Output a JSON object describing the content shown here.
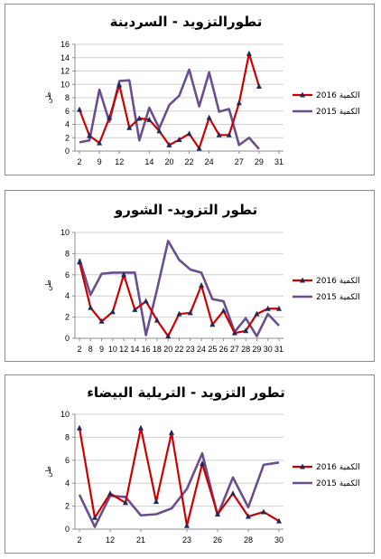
{
  "colors": {
    "s2016": "#cc0000",
    "s2015": "#6a4f8f",
    "marker2016": "#1f2a5c",
    "axis": "#8c8c8c"
  },
  "chart_data": [
    {
      "type": "line",
      "title": "تطورالتزويد - السردينة",
      "ylabel": "طن",
      "ylim": [
        0,
        16
      ],
      "yticks": [
        0,
        2,
        4,
        6,
        8,
        10,
        12,
        14,
        16
      ],
      "x": [
        2,
        6,
        9,
        11,
        12,
        13,
        14,
        16,
        18,
        20,
        21,
        22,
        23,
        24,
        25,
        26,
        27,
        28,
        29,
        30,
        31
      ],
      "xtick_labels": [
        "2",
        "9",
        "12",
        "14",
        "20",
        "22",
        "24",
        "27",
        "29",
        "31"
      ],
      "series": [
        {
          "name": "2016 الكمية",
          "values": [
            6.2,
            2.3,
            1.2,
            5.0,
            9.9,
            3.5,
            4.9,
            4.7,
            3.0,
            0.9,
            1.7,
            2.6,
            0.4,
            5.0,
            2.4,
            2.4,
            7.2,
            14.6,
            9.7,
            null,
            null
          ]
        },
        {
          "name": "2015 الكمية",
          "values": [
            1.3,
            1.6,
            9.2,
            4.4,
            10.5,
            10.6,
            1.6,
            6.5,
            3.4,
            6.9,
            8.3,
            12.2,
            6.7,
            11.8,
            5.9,
            6.3,
            0.9,
            2.0,
            0.3,
            null,
            null
          ]
        }
      ]
    },
    {
      "type": "line",
      "title": "تطور التزويد- الشورو",
      "ylabel": "طن",
      "ylim": [
        0,
        10
      ],
      "yticks": [
        0,
        2,
        4,
        6,
        8,
        10
      ],
      "xtick_labels": [
        "2",
        "8",
        "9",
        "10",
        "12",
        "14",
        "16",
        "18",
        "20",
        "22",
        "23",
        "24",
        "25",
        "26",
        "27",
        "28",
        "29",
        "30",
        "31"
      ],
      "series": [
        {
          "name": "2016 الكمية",
          "values": [
            7.2,
            2.9,
            1.6,
            2.5,
            6.0,
            2.7,
            3.5,
            1.7,
            0.2,
            2.3,
            2.4,
            5.0,
            1.3,
            2.6,
            0.5,
            0.7,
            2.3,
            2.8,
            2.8
          ]
        },
        {
          "name": "2015 الكمية",
          "values": [
            7.5,
            4.1,
            6.1,
            6.2,
            6.2,
            6.2,
            0.3,
            4.6,
            9.2,
            7.4,
            6.5,
            6.2,
            3.7,
            3.5,
            0.6,
            1.9,
            0.2,
            2.3,
            1.2
          ]
        }
      ]
    },
    {
      "type": "line",
      "title": "تطور التزويد - التريلية البيضاء",
      "ylabel": "طن",
      "ylim": [
        0,
        10
      ],
      "yticks": [
        0,
        2,
        4,
        6,
        8,
        10
      ],
      "xtick_labels": [
        "2",
        "12",
        "21",
        "23",
        "26",
        "28",
        "30"
      ],
      "series": [
        {
          "name": "2016 الكمية",
          "values": [
            8.8,
            1.0,
            3.1,
            2.3,
            8.8,
            2.4,
            8.4,
            0.3,
            5.7,
            1.3,
            3.1,
            1.1,
            1.5,
            0.7
          ]
        },
        {
          "name": "2015 الكمية",
          "values": [
            3.0,
            0.2,
            2.9,
            2.8,
            1.2,
            1.3,
            1.8,
            3.5,
            6.6,
            1.2,
            4.5,
            1.9,
            5.6,
            5.8
          ]
        }
      ]
    }
  ]
}
